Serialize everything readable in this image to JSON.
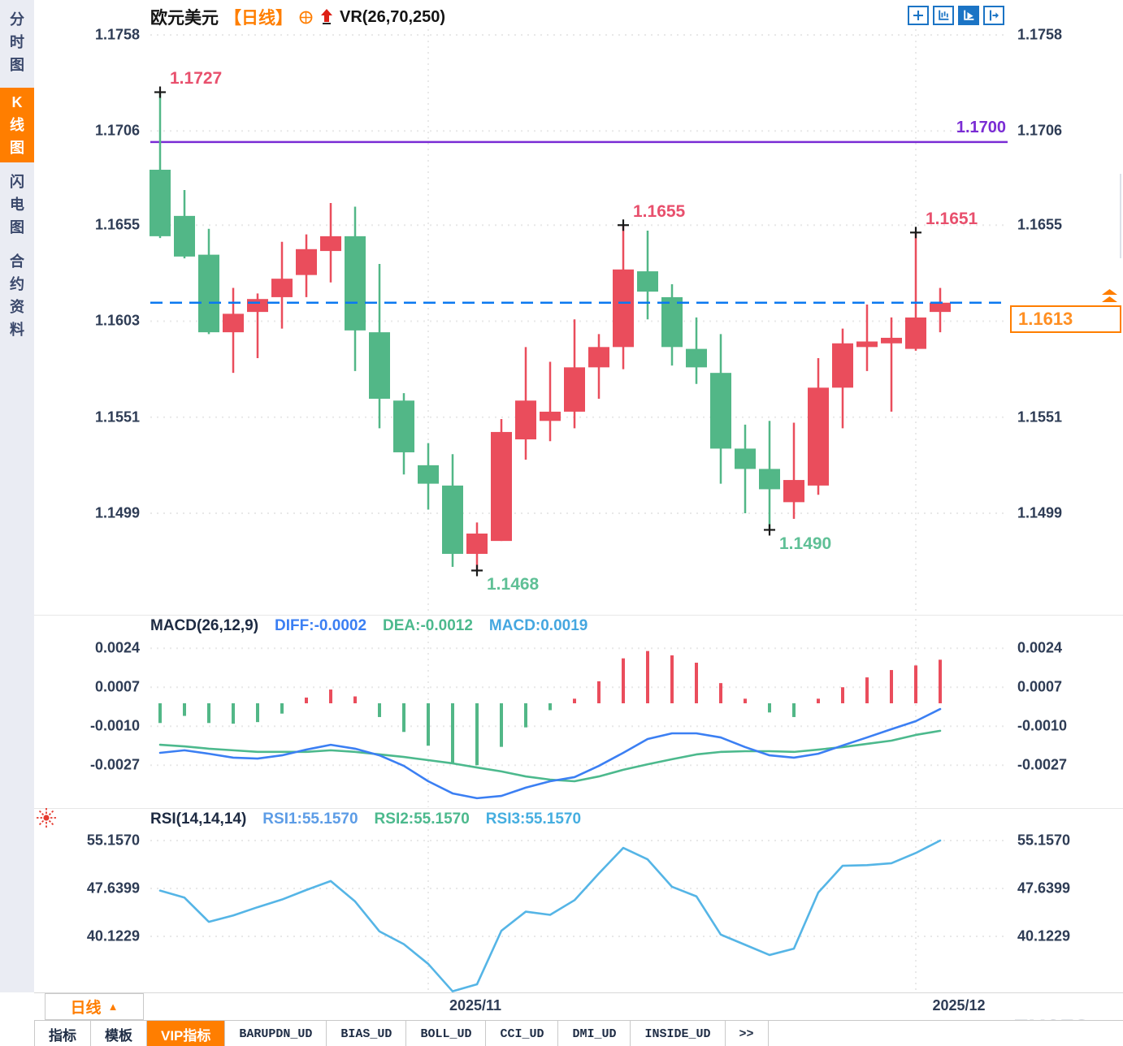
{
  "header": {
    "symbol": "欧元美元",
    "period_tag": "【日线】",
    "indicator": "VR(26,70,250)"
  },
  "toolbar": {
    "icons": [
      {
        "name": "crosshair-move-icon",
        "active": false
      },
      {
        "name": "axes-chart-icon",
        "active": false
      },
      {
        "name": "axes-play-icon",
        "active": true
      },
      {
        "name": "exit-right-icon",
        "active": false
      }
    ]
  },
  "sidebar": {
    "items": [
      {
        "label": "分时图",
        "active": false
      },
      {
        "label": "K线图",
        "active": true
      },
      {
        "label": "闪电图",
        "active": false
      },
      {
        "label": "合约资料",
        "active": false
      }
    ]
  },
  "price_panel": {
    "ticks": [
      "1.1758",
      "1.1706",
      "1.1655",
      "1.1603",
      "1.1551",
      "1.1499"
    ],
    "right_ticks": [
      "1.1758",
      "1.1706",
      "1.1655",
      "1.1551",
      "1.1499"
    ],
    "level": {
      "value": 1.17,
      "label": "1.1700"
    },
    "current": {
      "value": 1.1613,
      "label": "1.1613"
    },
    "annotations": [
      {
        "text": "1.1727",
        "candle": 1,
        "side": "high"
      },
      {
        "text": "1.1655",
        "candle": 20,
        "side": "high"
      },
      {
        "text": "1.1651",
        "candle": 32,
        "side": "high"
      },
      {
        "text": "1.1468",
        "candle": 14,
        "side": "low"
      },
      {
        "text": "1.1490",
        "candle": 26,
        "side": "low"
      }
    ]
  },
  "macd_panel": {
    "title": "MACD(26,12,9)",
    "diff_label": "DIFF:-0.0002",
    "dea_label": "DEA:-0.0012",
    "macd_label": "MACD:0.0019",
    "ticks": [
      "0.0024",
      "0.0007",
      "-0.0010",
      "-0.0027"
    ]
  },
  "rsi_panel": {
    "title": "RSI(14,14,14)",
    "rsi1_label": "RSI1:55.1570",
    "rsi2_label": "RSI2:55.1570",
    "rsi3_label": "RSI3:55.1570",
    "ticks": [
      "55.1570",
      "47.6399",
      "40.1229"
    ]
  },
  "x_axis": {
    "labels": [
      "2025/11",
      "2025/12"
    ]
  },
  "period_selector": {
    "label": "日线"
  },
  "tabs": [
    {
      "label": "指标",
      "active": false
    },
    {
      "label": "模板",
      "active": false
    },
    {
      "label": "VIP指标",
      "active": true
    },
    {
      "label": "BARUPDN_UD",
      "active": false
    },
    {
      "label": "BIAS_UD",
      "active": false
    },
    {
      "label": "BOLL_UD",
      "active": false
    },
    {
      "label": "CCI_UD",
      "active": false
    },
    {
      "label": "DMI_UD",
      "active": false
    },
    {
      "label": "INSIDE_UD",
      "active": false
    },
    {
      "label": ">>",
      "active": false
    }
  ],
  "watermark": "FX678",
  "colors": {
    "up": "#ea4d5c",
    "down": "#52b787",
    "current_line": "#0a78f0",
    "level_line": "#7a2cd4",
    "accent": "#ff7e00",
    "diff": "#3b7ff3",
    "dea": "#4cb98d",
    "macd_value": "#45a7e0",
    "rsi1": "#5c9ce6",
    "rsi2": "#4cb98d",
    "rsi3": "#45aee0",
    "rsi_line": "#55b5e6",
    "high_label": "#e8506d",
    "low_label": "#5fc096"
  },
  "chart_data": {
    "type": "candlestick",
    "title": "欧元美元 日线",
    "legend": [
      "K线",
      "MACD(26,12,9)",
      "RSI(14,14,14)"
    ],
    "x_gridline_labels": [
      "2025/11",
      "2025/12"
    ],
    "ylim": [
      1.1468,
      1.1758
    ],
    "candles_ohlc": [
      [
        1.1685,
        1.1727,
        1.1648,
        1.1649
      ],
      [
        1.166,
        1.1674,
        1.1637,
        1.1638
      ],
      [
        1.1639,
        1.1653,
        1.1596,
        1.1597
      ],
      [
        1.1597,
        1.1621,
        1.1575,
        1.1607
      ],
      [
        1.1608,
        1.1618,
        1.1583,
        1.1615
      ],
      [
        1.1616,
        1.1646,
        1.1599,
        1.1626
      ],
      [
        1.1628,
        1.165,
        1.1616,
        1.1642
      ],
      [
        1.1641,
        1.1667,
        1.1624,
        1.1649
      ],
      [
        1.1649,
        1.1665,
        1.1576,
        1.1598
      ],
      [
        1.1597,
        1.1634,
        1.1545,
        1.1561
      ],
      [
        1.156,
        1.1564,
        1.152,
        1.1532
      ],
      [
        1.1525,
        1.1537,
        1.1501,
        1.1515
      ],
      [
        1.1514,
        1.1531,
        1.147,
        1.1477
      ],
      [
        1.1477,
        1.1494,
        1.1468,
        1.1488
      ],
      [
        1.1484,
        1.155,
        1.1484,
        1.1543
      ],
      [
        1.1539,
        1.1589,
        1.1528,
        1.156
      ],
      [
        1.1549,
        1.1581,
        1.1538,
        1.1554
      ],
      [
        1.1554,
        1.1604,
        1.1545,
        1.1578
      ],
      [
        1.1578,
        1.1596,
        1.1561,
        1.1589
      ],
      [
        1.1589,
        1.1655,
        1.1577,
        1.1631
      ],
      [
        1.163,
        1.1652,
        1.1604,
        1.1619
      ],
      [
        1.1616,
        1.1623,
        1.1579,
        1.1589
      ],
      [
        1.1588,
        1.1605,
        1.1569,
        1.1578
      ],
      [
        1.1575,
        1.1596,
        1.1515,
        1.1534
      ],
      [
        1.1534,
        1.1547,
        1.1499,
        1.1523
      ],
      [
        1.1523,
        1.1549,
        1.149,
        1.1512
      ],
      [
        1.1505,
        1.1548,
        1.1496,
        1.1517
      ],
      [
        1.1514,
        1.1583,
        1.1509,
        1.1567
      ],
      [
        1.1567,
        1.1599,
        1.1545,
        1.1591
      ],
      [
        1.1589,
        1.1612,
        1.1576,
        1.1592
      ],
      [
        1.1591,
        1.1605,
        1.1554,
        1.1594
      ],
      [
        1.1588,
        1.1651,
        1.1587,
        1.1605
      ],
      [
        1.1608,
        1.1621,
        1.1597,
        1.1613
      ]
    ],
    "macd": {
      "params": [
        26,
        12,
        9
      ],
      "diff": [
        -0.00216,
        -0.00205,
        -0.0022,
        -0.00237,
        -0.00241,
        -0.00227,
        -0.00202,
        -0.00181,
        -0.00198,
        -0.00227,
        -0.00273,
        -0.0034,
        -0.00393,
        -0.00414,
        -0.00404,
        -0.00368,
        -0.0034,
        -0.00322,
        -0.00273,
        -0.00216,
        -0.00156,
        -0.00131,
        -0.00131,
        -0.00149,
        -0.00191,
        -0.00227,
        -0.00237,
        -0.0022,
        -0.00184,
        -0.00149,
        -0.00113,
        -0.00078,
        -0.00025
      ],
      "dea": [
        -0.00181,
        -0.00188,
        -0.00198,
        -0.00205,
        -0.00212,
        -0.00212,
        -0.00212,
        -0.00205,
        -0.00212,
        -0.00223,
        -0.00234,
        -0.00248,
        -0.00262,
        -0.0028,
        -0.00297,
        -0.00319,
        -0.00333,
        -0.0034,
        -0.00319,
        -0.0029,
        -0.00266,
        -0.00244,
        -0.00223,
        -0.00212,
        -0.00209,
        -0.00209,
        -0.00212,
        -0.00202,
        -0.00191,
        -0.00177,
        -0.00163,
        -0.00138,
        -0.0012
      ],
      "hist": [
        -0.00086,
        -0.00055,
        -0.00086,
        -0.00089,
        -0.00082,
        -0.00045,
        0.00025,
        0.0006,
        0.0003,
        -0.0006,
        -0.00125,
        -0.00185,
        -0.00265,
        -0.0027,
        -0.0019,
        -0.00105,
        -0.0003,
        0.0002,
        0.00096,
        0.00196,
        0.00228,
        0.00209,
        0.00177,
        0.00088,
        0.0002,
        -0.0004,
        -0.0006,
        0.0002,
        0.0007,
        0.00113,
        0.00145,
        0.00165,
        0.0019
      ]
    },
    "rsi": {
      "params": [
        14,
        14,
        14
      ],
      "values": [
        47.3,
        46.2,
        42.4,
        43.4,
        44.7,
        45.9,
        47.4,
        48.8,
        45.6,
        40.9,
        38.9,
        35.8,
        31.5,
        32.6,
        41.0,
        44.0,
        43.5,
        45.8,
        50.0,
        54.0,
        52.2,
        47.9,
        46.4,
        40.4,
        38.8,
        37.2,
        38.2,
        47.0,
        51.2,
        51.3,
        51.6,
        53.2,
        55.16
      ]
    }
  }
}
